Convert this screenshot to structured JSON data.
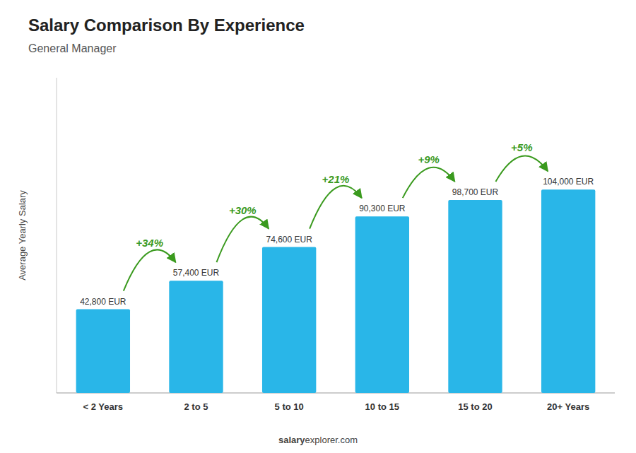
{
  "chart_data": {
    "type": "bar",
    "title": "Salary Comparison By Experience",
    "subtitle": "General Manager",
    "y_label": "Average Yearly Salary",
    "categories": [
      "< 2 Years",
      "2 to 5",
      "5 to 10",
      "10 to 15",
      "15 to 20",
      "20+ Years"
    ],
    "values": [
      42800,
      57400,
      74600,
      90300,
      98700,
      104000
    ],
    "value_labels": [
      "42,800 EUR",
      "57,400 EUR",
      "74,600 EUR",
      "90,300 EUR",
      "98,700 EUR",
      "104,000 EUR"
    ],
    "data_labels": true,
    "annotations": [
      "+34%",
      "+30%",
      "+21%",
      "+9%",
      "+5%"
    ],
    "footer": [
      "salary",
      "explorer.com"
    ],
    "color": "#29b6e8",
    "ylim": [
      0,
      161200
    ],
    "tick_labels": "x"
  }
}
